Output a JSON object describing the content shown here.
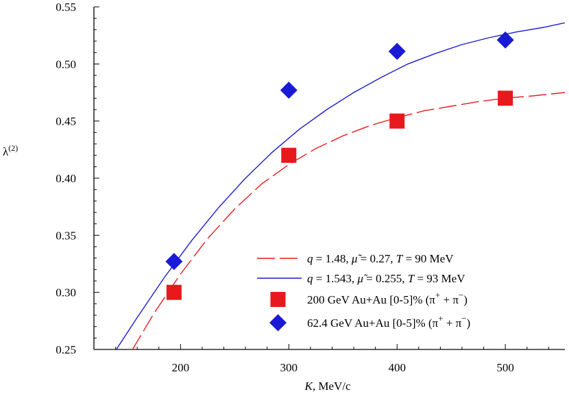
{
  "chart_data": {
    "type": "scatter",
    "title": "",
    "xlabel": "K, MeV/c",
    "xlabel_var": "K",
    "xlabel_unit": ", MeV/c",
    "ylabel": "λ(2)",
    "ylabel_base": "λ",
    "ylabel_sup": "(2)",
    "xlim": [
      120,
      555
    ],
    "ylim": [
      0.25,
      0.55
    ],
    "x_ticks": [
      200,
      300,
      400,
      500
    ],
    "x_tick_labels": [
      "200",
      "300",
      "400",
      "500"
    ],
    "x_minor_step": 20,
    "y_ticks": [
      0.25,
      0.3,
      0.35,
      0.4,
      0.45,
      0.5,
      0.55
    ],
    "y_tick_labels": [
      "0.25",
      "0.30",
      "0.35",
      "0.40",
      "0.45",
      "0.50",
      "0.55"
    ],
    "y_minor_step": 0.01,
    "grid": false,
    "legend_position": "bottom-right",
    "series": [
      {
        "name": "q = 1.48, μ̃ = 0.27, T = 90 MeV",
        "kind": "line",
        "style": "dashed",
        "color": "#e8191c",
        "x": [
          155,
          175,
          200,
          225,
          250,
          275,
          300,
          325,
          350,
          375,
          400,
          425,
          450,
          475,
          500,
          525,
          555
        ],
        "y": [
          0.249,
          0.281,
          0.316,
          0.347,
          0.373,
          0.395,
          0.412,
          0.426,
          0.437,
          0.446,
          0.453,
          0.459,
          0.463,
          0.467,
          0.47,
          0.472,
          0.475
        ]
      },
      {
        "name": "q = 1.543, μ̃ = 0.255, T = 93 MeV",
        "kind": "line",
        "style": "solid",
        "color": "#1a1ad6",
        "x": [
          140,
          160,
          185,
          210,
          235,
          260,
          285,
          310,
          335,
          360,
          385,
          410,
          435,
          460,
          485,
          510,
          535,
          555
        ],
        "y": [
          0.249,
          0.278,
          0.313,
          0.345,
          0.374,
          0.4,
          0.423,
          0.443,
          0.46,
          0.475,
          0.488,
          0.5,
          0.509,
          0.517,
          0.523,
          0.528,
          0.532,
          0.536
        ]
      },
      {
        "name": "200 GeV Au+Au [0-5]% (π⁺+π⁻)",
        "kind": "points",
        "marker": "square",
        "color": "#e8191c",
        "x": [
          194,
          300,
          400,
          500
        ],
        "y": [
          0.3,
          0.42,
          0.45,
          0.47
        ]
      },
      {
        "name": "62.4 GeV Au+Au [0-5]% (π⁺+π⁻)",
        "kind": "points",
        "marker": "diamond",
        "color": "#1a1ad6",
        "x": [
          194,
          300,
          400,
          500
        ],
        "y": [
          0.327,
          0.477,
          0.511,
          0.521
        ]
      }
    ],
    "legend": [
      {
        "series": 0,
        "pre_q": "q",
        "a": " = 1.48, ",
        "mu": "μ̃",
        "b": " = 0.27, ",
        "t": "T",
        "c": " = 90 MeV"
      },
      {
        "series": 1,
        "pre_q": "q",
        "a": " = 1.543, ",
        "mu": "μ̃",
        "b": " = 0.255, ",
        "t": "T",
        "c": " = 93 MeV"
      },
      {
        "series": 2,
        "text": "200 GeV Au+Au [0-5]% (π",
        "sup1": "+",
        "mid": " + π",
        "sup2": "−",
        "end": ")"
      },
      {
        "series": 3,
        "text": "62.4 GeV Au+Au [0-5]% (π",
        "sup1": "+",
        "mid": " + π",
        "sup2": "−",
        "end": ")"
      }
    ]
  }
}
